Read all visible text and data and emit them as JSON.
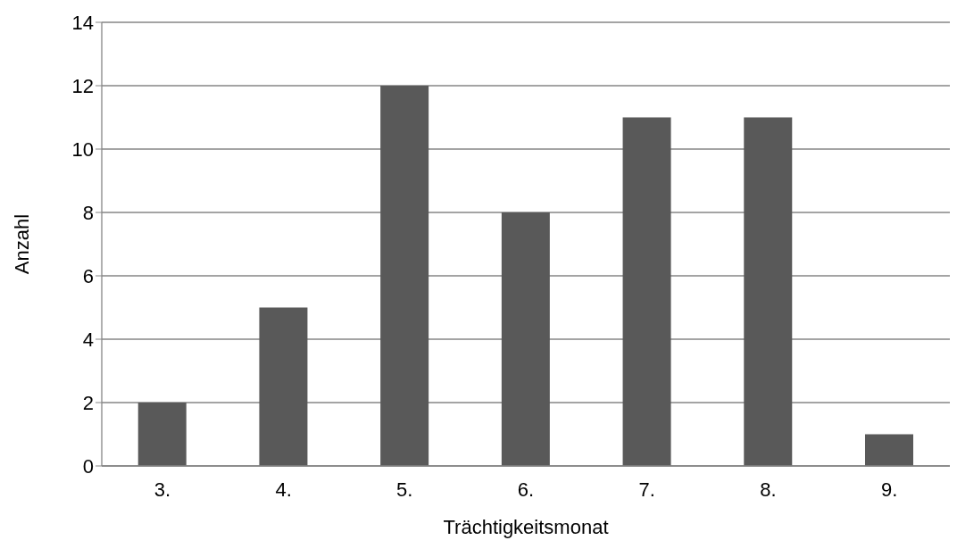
{
  "chart_data": {
    "type": "bar",
    "xlabel": "Trächtigkeitsmonat",
    "ylabel": "Anzahl",
    "categories": [
      "3.",
      "4.",
      "5.",
      "6.",
      "7.",
      "8.",
      "9."
    ],
    "values": [
      2,
      5,
      12,
      8,
      11,
      11,
      1
    ],
    "color": "#595959",
    "ylim": [
      0,
      14
    ],
    "yticks": [
      0,
      2,
      4,
      6,
      8,
      10,
      12,
      14
    ],
    "grid": "y"
  }
}
